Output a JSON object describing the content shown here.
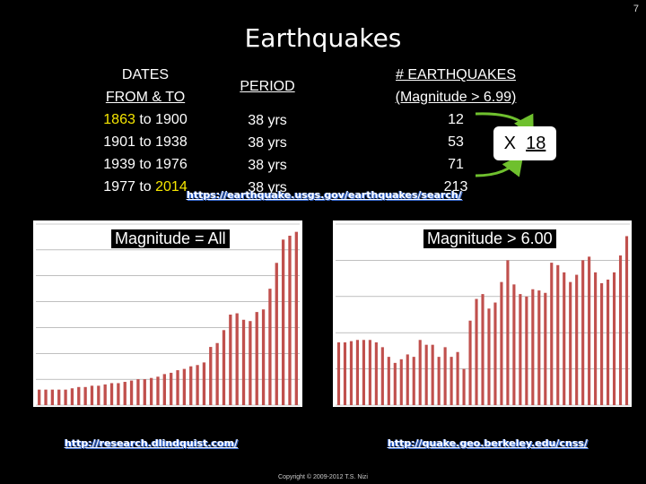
{
  "slide_number": "7",
  "title": "Earthquakes",
  "table": {
    "dates_header": [
      "DATES",
      "FROM & TO"
    ],
    "period_header": "PERIOD",
    "eq_header": [
      "# EARTHQUAKES",
      "(Magnitude > 6.99)"
    ],
    "rows": [
      {
        "from": "1863",
        "to_word": "to",
        "until": "1900",
        "period": "38 yrs",
        "count": "12"
      },
      {
        "from": "1901",
        "to_word": "to",
        "until": "1938",
        "period": "38 yrs",
        "count": "53"
      },
      {
        "from": "1939",
        "to_word": "to",
        "until": "1976",
        "period": "38 yrs",
        "count": "71"
      },
      {
        "from": "1977",
        "to_word": "to",
        "until": "2014",
        "period": "38 yrs",
        "count": "213"
      }
    ]
  },
  "callout": {
    "prefix": "X",
    "value": "18"
  },
  "links": {
    "usgs": "https://earthquake.usgs.gov/earthquakes/search/",
    "lindquist": "http://research.dlindquist.com/",
    "berkeley": "http://quake.geo.berkeley.edu/cnss/"
  },
  "copyright": "Copyright © 2009-2012 T.S. Nizi",
  "colors": {
    "bar": "#c0504d",
    "highlight": "#f6e600",
    "arrow": "#6fc02e"
  },
  "chart_data": [
    {
      "type": "bar",
      "title": "Magnitude = All",
      "values": [
        12,
        12,
        12,
        12,
        12,
        13,
        14,
        14,
        15,
        15,
        16,
        17,
        17,
        18,
        19,
        20,
        20,
        21,
        22,
        24,
        25,
        27,
        28,
        30,
        31,
        33,
        45,
        48,
        58,
        70,
        71,
        66,
        65,
        72,
        74,
        90,
        110,
        128,
        131,
        134
      ]
    },
    {
      "type": "bar",
      "title": "Magnitude > 6.00",
      "values": [
        52,
        52,
        53,
        54,
        54,
        54,
        52,
        48,
        40,
        35,
        38,
        42,
        40,
        54,
        50,
        50,
        40,
        48,
        40,
        44,
        30,
        70,
        88,
        92,
        80,
        85,
        102,
        120,
        100,
        92,
        90,
        96,
        95,
        93,
        118,
        116,
        110,
        102,
        108,
        120,
        123,
        110,
        101,
        104,
        110,
        124,
        140
      ]
    }
  ]
}
